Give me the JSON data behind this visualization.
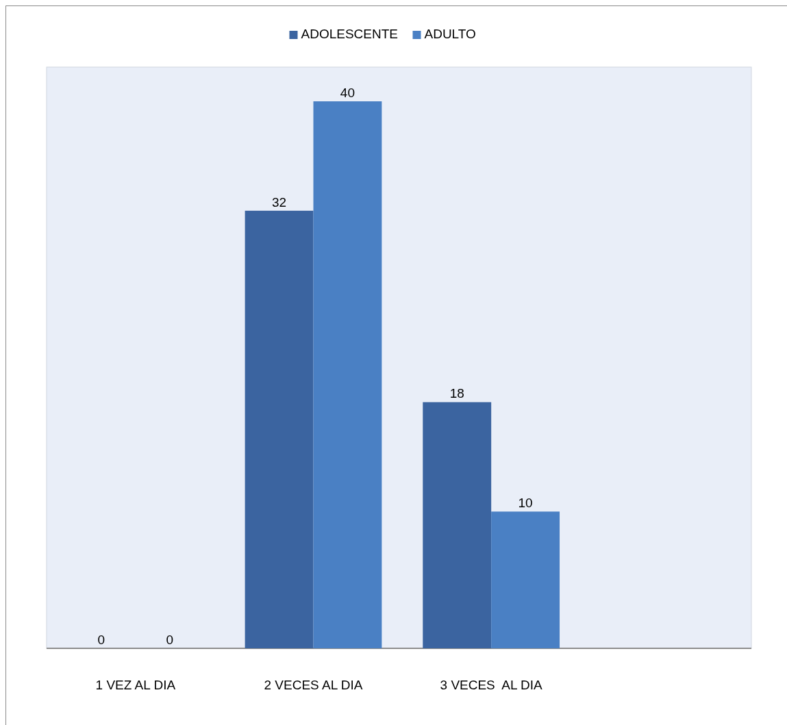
{
  "chart_data": {
    "type": "bar",
    "categories": [
      "1 VEZ AL DIA",
      "2 VECES AL DIA",
      "3 VECES  AL DIA"
    ],
    "series": [
      {
        "name": "ADOLESCENTE",
        "color": "#3b64a0",
        "values": [
          0,
          32,
          18
        ]
      },
      {
        "name": "ADULTO",
        "color": "#4a80c4",
        "values": [
          0,
          40,
          10
        ]
      }
    ],
    "data_labels": true,
    "legend": "top"
  }
}
